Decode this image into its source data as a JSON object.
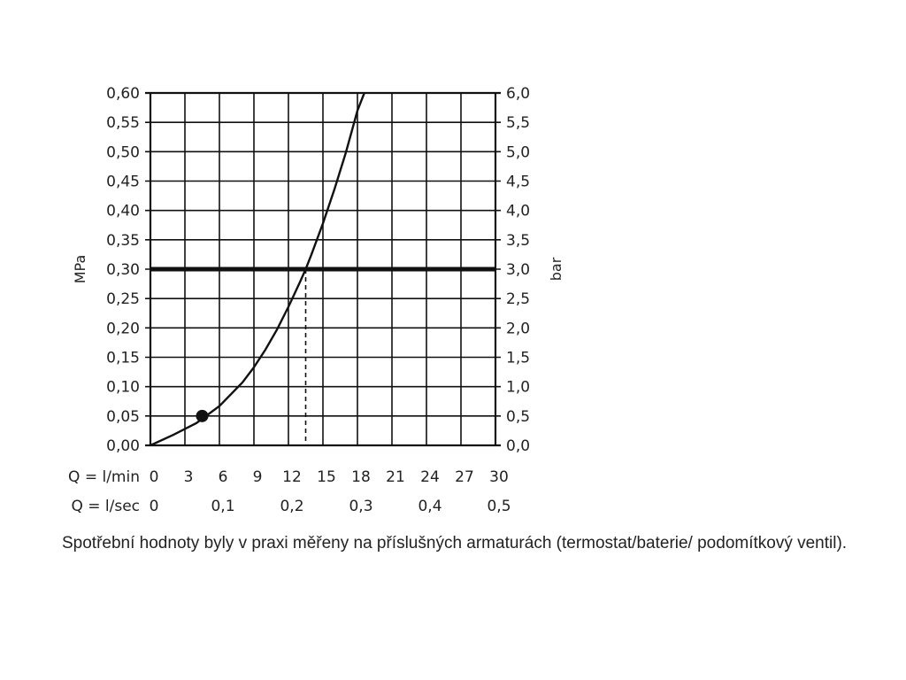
{
  "chart_data": {
    "type": "line",
    "y_left": {
      "label": "MPa",
      "range": [
        0,
        0.6
      ],
      "ticks": [
        "0,00",
        "0,05",
        "0,10",
        "0,15",
        "0,20",
        "0,25",
        "0,30",
        "0,35",
        "0,40",
        "0,45",
        "0,50",
        "0,55",
        "0,60"
      ]
    },
    "y_right": {
      "label": "bar",
      "range": [
        0,
        6
      ],
      "ticks": [
        "0,0",
        "0,5",
        "1,0",
        "1,5",
        "2,0",
        "2,5",
        "3,0",
        "3,5",
        "4,0",
        "4,5",
        "5,0",
        "5,5",
        "6,0"
      ]
    },
    "x_primary": {
      "label": "Q = l/min",
      "range": [
        0,
        30
      ],
      "values": [
        0,
        3,
        6,
        9,
        12,
        15,
        18,
        21,
        24,
        27,
        30
      ],
      "ticks": [
        "0",
        "3",
        "6",
        "9",
        "12",
        "15",
        "18",
        "21",
        "24",
        "27",
        "30"
      ]
    },
    "x_secondary": {
      "label": "Q = l/sec",
      "values": [
        0,
        0.1,
        0.2,
        0.3,
        0.4,
        0.5
      ],
      "ticks": [
        "0",
        "0,1",
        "0,2",
        "0,3",
        "0,4",
        "0,5"
      ]
    },
    "grid": true,
    "series": [
      {
        "x": [
          0,
          2,
          4,
          6,
          8,
          9,
          10,
          11,
          12,
          13,
          13.5,
          14,
          15,
          16,
          17,
          18,
          18.6
        ],
        "y": [
          0,
          0.018,
          0.038,
          0.067,
          0.107,
          0.133,
          0.163,
          0.197,
          0.236,
          0.278,
          0.3,
          0.325,
          0.378,
          0.436,
          0.499,
          0.57,
          0.6
        ]
      }
    ],
    "reference_line_mpa": 0.3,
    "reference_flow_lmin": 13.5,
    "marker": {
      "x": 4.5,
      "y": 0.05
    }
  },
  "caption": "Spotřební hodnoty byly v praxi měřeny na příslušných armaturách (termostat/baterie/ podomítkový ventil)."
}
